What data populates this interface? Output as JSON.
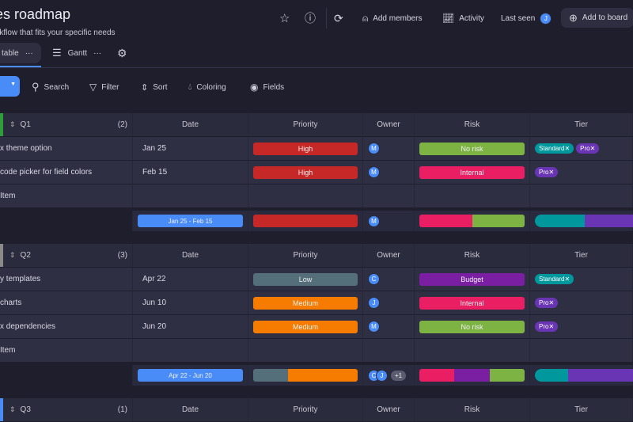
{
  "header": {
    "title": "es roadmap",
    "subtitle": "rkflow that fits your specific needs",
    "tabs": [
      {
        "label": "table",
        "more": "···"
      },
      {
        "label": "Gantt",
        "more": "···"
      }
    ],
    "actions": {
      "add_members": "Add members",
      "activity": "Activity",
      "last_seen": "Last seen",
      "last_seen_avatar": "J",
      "add_to_board": "Add to board"
    }
  },
  "toolbar": {
    "search": "Search",
    "filter": "Filter",
    "sort": "Sort",
    "coloring": "Coloring",
    "fields": "Fields"
  },
  "columns": [
    "Date",
    "Priority",
    "Owner",
    "Risk",
    "Tier"
  ],
  "colors": {
    "High": "#c62828",
    "Medium": "#f57c00",
    "Low": "#546e7a",
    "No risk": "#7cb342",
    "Internal": "#e91e63",
    "Budget": "#7b1fa2",
    "Standard": "#00979d",
    "Pro": "#6a35b5",
    "accent": "#4a8cf7"
  },
  "groups": [
    {
      "name": "Q1",
      "count": "(2)",
      "color": "#2e9d3a",
      "items": [
        {
          "name": "x theme option",
          "date": "Jan 25",
          "priority": "High",
          "owner": "M",
          "risk": "No risk",
          "tier": [
            "Standard",
            "Pro"
          ]
        },
        {
          "name": "code picker for field colors",
          "date": "Feb 15",
          "priority": "High",
          "owner": "M",
          "risk": "Internal",
          "tier": [
            "Pro"
          ]
        }
      ],
      "add_item": "Item",
      "summary": {
        "date": "Jan 25 - Feb 15",
        "priority": [
          "High"
        ],
        "owners": [
          "M"
        ],
        "extra": "",
        "risk": [
          "Internal",
          "No risk"
        ],
        "tier": [
          "Standard",
          "Pro"
        ]
      }
    },
    {
      "name": "Q2",
      "count": "(3)",
      "color": "#8a8a8a",
      "items": [
        {
          "name": "y templates",
          "date": "Apr 22",
          "priority": "Low",
          "owner": "C",
          "risk": "Budget",
          "tier": [
            "Standard"
          ]
        },
        {
          "name": "charts",
          "date": "Jun 10",
          "priority": "Medium",
          "owner": "J",
          "risk": "Internal",
          "tier": [
            "Pro"
          ]
        },
        {
          "name": "x dependencies",
          "date": "Jun 20",
          "priority": "Medium",
          "owner": "M",
          "risk": "No risk",
          "tier": [
            "Pro"
          ]
        }
      ],
      "add_item": "Item",
      "summary": {
        "date": "Apr 22 - Jun 20",
        "priority": [
          "Low",
          "Medium",
          "Medium"
        ],
        "owners": [
          "C",
          "J"
        ],
        "extra": "+1",
        "risk": [
          "Internal",
          "Budget",
          "No risk"
        ],
        "tier": [
          "Standard",
          "Pro",
          "Pro"
        ]
      }
    },
    {
      "name": "Q3",
      "count": "(1)",
      "color": "#4a8cf7",
      "items": []
    }
  ]
}
